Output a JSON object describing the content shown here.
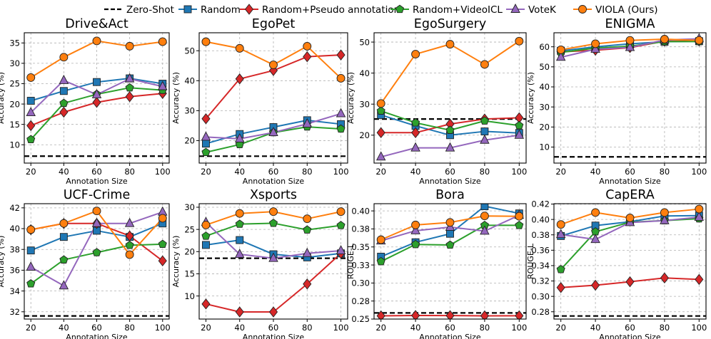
{
  "colors": {
    "Zero-Shot": "#000000",
    "Random": "#1f77b4",
    "Random+Pseudo annotation": "#d62728",
    "Random+VideoICL": "#2ca02c",
    "VoteK": "#9467bd",
    "VIOLA (Ours)": "#ff7f0e"
  },
  "legend": [
    {
      "label": "Zero-Shot",
      "marker": "none",
      "dashed": true
    },
    {
      "label": "Random",
      "marker": "square"
    },
    {
      "label": "Random+Pseudo annotation",
      "marker": "diamond"
    },
    {
      "label": "Random+VideoICL",
      "marker": "pentagon"
    },
    {
      "label": "VoteK",
      "marker": "triangle"
    },
    {
      "label": "VIOLA (Ours)",
      "marker": "circle"
    }
  ],
  "chart_data": [
    {
      "type": "line",
      "title": "Drive&Act",
      "xlabel": "Annotation Size",
      "ylabel": "Accuracy (%)",
      "categories": [
        20,
        40,
        60,
        80,
        100
      ],
      "xlim": [
        16,
        104
      ],
      "ylim": [
        5.5,
        37.5
      ],
      "yticks": [
        10,
        15,
        20,
        25,
        30,
        35
      ],
      "ytick_labels": [
        "10",
        "15",
        "20",
        "25",
        "30",
        "35"
      ],
      "zero_shot": 7.2,
      "series": [
        {
          "name": "Random",
          "values": [
            20.8,
            23.2,
            25.4,
            26.3,
            25.0
          ]
        },
        {
          "name": "Random+Pseudo annotation",
          "values": [
            14.7,
            18.0,
            20.4,
            21.8,
            22.6
          ]
        },
        {
          "name": "Random+VideoICL",
          "values": [
            11.3,
            20.2,
            22.4,
            24.0,
            23.4
          ]
        },
        {
          "name": "VoteK",
          "values": [
            17.9,
            25.8,
            22.3,
            26.2,
            24.3
          ]
        },
        {
          "name": "VIOLA (Ours)",
          "values": [
            26.5,
            31.5,
            35.5,
            34.2,
            35.3
          ]
        }
      ]
    },
    {
      "type": "line",
      "title": "EgoPet",
      "xlabel": "Annotation Size",
      "ylabel": "Accuracy (%)",
      "categories": [
        20,
        40,
        60,
        80,
        100
      ],
      "xlim": [
        16,
        104
      ],
      "ylim": [
        12.5,
        56
      ],
      "yticks": [
        20,
        30,
        40,
        50
      ],
      "ytick_labels": [
        "20",
        "30",
        "40",
        "50"
      ],
      "zero_shot": 14.8,
      "series": [
        {
          "name": "Random",
          "values": [
            19.0,
            22.2,
            24.5,
            26.8,
            25.5
          ]
        },
        {
          "name": "Random+Pseudo annotation",
          "values": [
            27.3,
            40.6,
            43.4,
            48.0,
            48.6
          ]
        },
        {
          "name": "Random+VideoICL",
          "values": [
            16.1,
            18.7,
            22.7,
            24.6,
            23.9
          ]
        },
        {
          "name": "VoteK",
          "values": [
            21.2,
            20.6,
            22.7,
            25.6,
            29.0
          ]
        },
        {
          "name": "VIOLA (Ours)",
          "values": [
            53.0,
            50.8,
            45.3,
            51.5,
            40.8
          ]
        }
      ]
    },
    {
      "type": "line",
      "title": "EgoSurgery",
      "xlabel": "Annotation Size",
      "ylabel": "Accuracy (%)",
      "categories": [
        20,
        40,
        60,
        80,
        100
      ],
      "xlim": [
        16,
        104
      ],
      "ylim": [
        11,
        53
      ],
      "yticks": [
        20,
        30,
        40,
        50
      ],
      "ytick_labels": [
        "20",
        "30",
        "40",
        "50"
      ],
      "zero_shot": 25.2,
      "series": [
        {
          "name": "Random",
          "values": [
            26.5,
            23.0,
            20.0,
            21.2,
            20.7
          ]
        },
        {
          "name": "Random+Pseudo annotation",
          "values": [
            20.8,
            20.8,
            23.6,
            25.2,
            25.6
          ]
        },
        {
          "name": "Random+VideoICL",
          "values": [
            27.8,
            24.0,
            21.6,
            24.6,
            23.1
          ]
        },
        {
          "name": "VoteK",
          "values": [
            13.0,
            15.9,
            15.9,
            18.4,
            20.0
          ]
        },
        {
          "name": "VIOLA (Ours)",
          "values": [
            30.2,
            46.1,
            49.3,
            42.8,
            50.3
          ]
        }
      ]
    },
    {
      "type": "line",
      "title": "ENIGMA",
      "xlabel": "Annotation Size",
      "ylabel": "Accuracy (%)",
      "categories": [
        20,
        40,
        60,
        80,
        100
      ],
      "xlim": [
        16,
        104
      ],
      "ylim": [
        2,
        67
      ],
      "yticks": [
        10,
        20,
        30,
        40,
        50,
        60
      ],
      "ytick_labels": [
        "10",
        "20",
        "30",
        "40",
        "50",
        "60"
      ],
      "zero_shot": 5.1,
      "series": [
        {
          "name": "Random",
          "values": [
            58.0,
            60.0,
            61.5,
            62.5,
            62.8
          ]
        },
        {
          "name": "Random+Pseudo annotation",
          "values": [
            57.5,
            58.3,
            59.6,
            62.8,
            62.9
          ]
        },
        {
          "name": "Random+VideoICL",
          "values": [
            57.2,
            59.4,
            60.3,
            62.6,
            62.6
          ]
        },
        {
          "name": "VoteK",
          "values": [
            54.8,
            58.8,
            59.7,
            63.4,
            64.0
          ]
        },
        {
          "name": "VIOLA (Ours)",
          "values": [
            58.5,
            61.5,
            63.2,
            63.8,
            63.2
          ]
        }
      ]
    },
    {
      "type": "line",
      "title": "UCF-Crime",
      "xlabel": "Annotation Size",
      "ylabel": "Accuracy (%)",
      "categories": [
        20,
        40,
        60,
        80,
        100
      ],
      "xlim": [
        16,
        104
      ],
      "ylim": [
        31.3,
        42.4
      ],
      "yticks": [
        32,
        34,
        36,
        38,
        40,
        42
      ],
      "ytick_labels": [
        "32",
        "34",
        "36",
        "38",
        "40",
        "42"
      ],
      "zero_shot": 31.6,
      "series": [
        {
          "name": "Random",
          "values": [
            37.9,
            39.2,
            39.8,
            39.2,
            40.5
          ]
        },
        {
          "name": "Random+Pseudo annotation",
          "values": [
            39.9,
            40.5,
            40.5,
            39.3,
            36.9
          ]
        },
        {
          "name": "Random+VideoICL",
          "values": [
            34.7,
            37.0,
            37.7,
            38.4,
            38.5
          ]
        },
        {
          "name": "VoteK",
          "values": [
            36.3,
            34.5,
            40.5,
            40.5,
            41.6
          ]
        },
        {
          "name": "VIOLA (Ours)",
          "values": [
            39.9,
            40.5,
            41.7,
            37.5,
            41.0
          ]
        }
      ]
    },
    {
      "type": "line",
      "title": "Xsports",
      "xlabel": "Annotation Size",
      "ylabel": "Accuracy (%)",
      "categories": [
        20,
        40,
        60,
        80,
        100
      ],
      "xlim": [
        16,
        104
      ],
      "ylim": [
        4.8,
        30.8
      ],
      "yticks": [
        10,
        15,
        20,
        25,
        30
      ],
      "ytick_labels": [
        "10",
        "15",
        "20",
        "25",
        "30"
      ],
      "zero_shot": 18.5,
      "series": [
        {
          "name": "Random",
          "values": [
            21.5,
            22.6,
            19.4,
            18.7,
            19.6
          ]
        },
        {
          "name": "Random+Pseudo annotation",
          "values": [
            8.2,
            6.4,
            6.4,
            12.7,
            19.6
          ]
        },
        {
          "name": "Random+VideoICL",
          "values": [
            23.5,
            26.2,
            26.4,
            24.9,
            25.9
          ]
        },
        {
          "name": "VoteK",
          "values": [
            26.6,
            19.4,
            18.5,
            19.6,
            20.2
          ]
        },
        {
          "name": "VIOLA (Ours)",
          "values": [
            26.0,
            28.6,
            29.0,
            27.4,
            29.0
          ]
        }
      ]
    },
    {
      "type": "line",
      "title": "Bora",
      "xlabel": "Annotation Size",
      "ylabel": "ROUGE-L",
      "categories": [
        20,
        40,
        60,
        80,
        100
      ],
      "xlim": [
        16,
        104
      ],
      "ylim": [
        0.25,
        0.41
      ],
      "yticks": [
        0.25,
        0.275,
        0.3,
        0.325,
        0.35,
        0.375,
        0.4
      ],
      "ytick_labels": [
        "0.25",
        "0.28",
        "0.30",
        "0.33",
        "0.35",
        "0.38",
        "0.40"
      ],
      "zero_shot": 0.2585,
      "series": [
        {
          "name": "Random",
          "values": [
            0.3365,
            0.3565,
            0.3683,
            0.4065,
            0.3965
          ]
        },
        {
          "name": "Random+Pseudo annotation",
          "values": [
            0.2545,
            0.2549,
            0.2548,
            0.2545,
            0.2546
          ]
        },
        {
          "name": "Random+VideoICL",
          "values": [
            0.3298,
            0.3535,
            0.3527,
            0.38,
            0.38
          ]
        },
        {
          "name": "VoteK",
          "values": [
            0.3585,
            0.3725,
            0.3775,
            0.372,
            0.394
          ]
        },
        {
          "name": "VIOLA (Ours)",
          "values": [
            0.36,
            0.3805,
            0.384,
            0.393,
            0.3925
          ]
        }
      ]
    },
    {
      "type": "line",
      "title": "CapERA",
      "xlabel": "Annotation Size",
      "ylabel": "ROUGE-L",
      "categories": [
        20,
        40,
        60,
        80,
        100
      ],
      "xlim": [
        16,
        104
      ],
      "ylim": [
        0.2705,
        0.4205
      ],
      "yticks": [
        0.28,
        0.3,
        0.32,
        0.34,
        0.36,
        0.38,
        0.4,
        0.42
      ],
      "ytick_labels": [
        "0.28",
        "0.30",
        "0.32",
        "0.34",
        "0.36",
        "0.38",
        "0.40",
        "0.42"
      ],
      "zero_shot": 0.2745,
      "series": [
        {
          "name": "Random",
          "values": [
            0.3785,
            0.392,
            0.397,
            0.4045,
            0.405
          ]
        },
        {
          "name": "Random+Pseudo annotation",
          "values": [
            0.3115,
            0.3145,
            0.319,
            0.324,
            0.322
          ]
        },
        {
          "name": "Random+VideoICL",
          "values": [
            0.335,
            0.384,
            0.3965,
            0.3985,
            0.401
          ]
        },
        {
          "name": "VoteK",
          "values": [
            0.3805,
            0.374,
            0.396,
            0.3985,
            0.403
          ]
        },
        {
          "name": "VIOLA (Ours)",
          "values": [
            0.3935,
            0.409,
            0.402,
            0.409,
            0.4135
          ]
        }
      ]
    }
  ]
}
